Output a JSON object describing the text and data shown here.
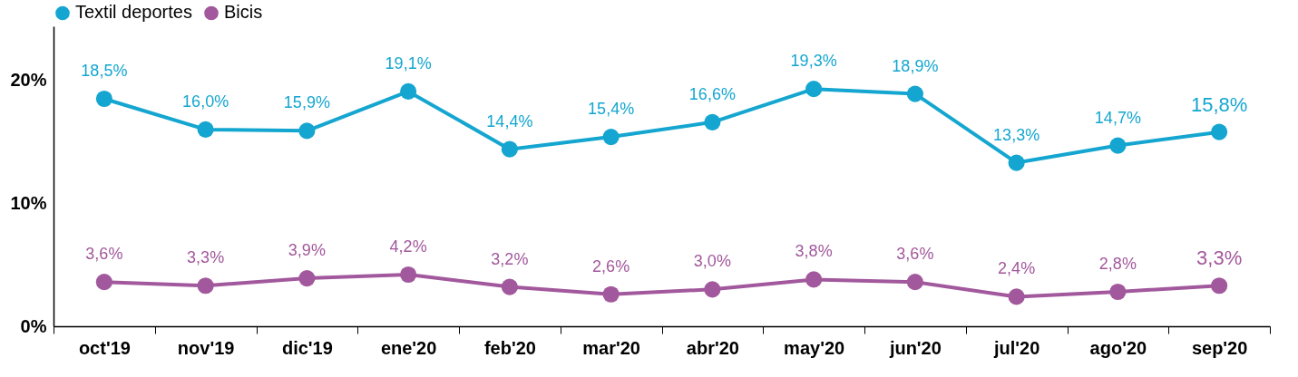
{
  "chart_data": {
    "type": "line",
    "categories": [
      "oct'19",
      "nov'19",
      "dic'19",
      "ene'20",
      "feb'20",
      "mar'20",
      "abr'20",
      "may'20",
      "jun'20",
      "jul'20",
      "ago'20",
      "sep'20"
    ],
    "series": [
      {
        "name": "Textil deportes",
        "color": "#14a6d0",
        "values": [
          18.5,
          16.0,
          15.9,
          19.1,
          14.4,
          15.4,
          16.6,
          19.3,
          18.9,
          13.3,
          14.7,
          15.8
        ],
        "value_labels": [
          "18,5%",
          "16,0%",
          "15,9%",
          "19,1%",
          "14,4%",
          "15,4%",
          "16,6%",
          "19,3%",
          "18,9%",
          "13,3%",
          "14,7%",
          "15,8%"
        ]
      },
      {
        "name": "Bicis",
        "color": "#a2589c",
        "values": [
          3.6,
          3.3,
          3.9,
          4.2,
          3.2,
          2.6,
          3.0,
          3.8,
          3.6,
          2.4,
          2.8,
          3.3
        ],
        "value_labels": [
          "3,6%",
          "3,3%",
          "3,9%",
          "4,2%",
          "3,2%",
          "2,6%",
          "3,0%",
          "3,8%",
          "3,6%",
          "2,4%",
          "2,8%",
          "3,3%"
        ]
      }
    ],
    "ylim": [
      0,
      24.4
    ],
    "yticks": [
      {
        "value": 0,
        "label": "0%"
      },
      {
        "value": 10,
        "label": "10%"
      },
      {
        "value": 20,
        "label": "20%"
      }
    ],
    "grid": false,
    "legend": "top",
    "marker": "circle",
    "line_style": "solid"
  }
}
